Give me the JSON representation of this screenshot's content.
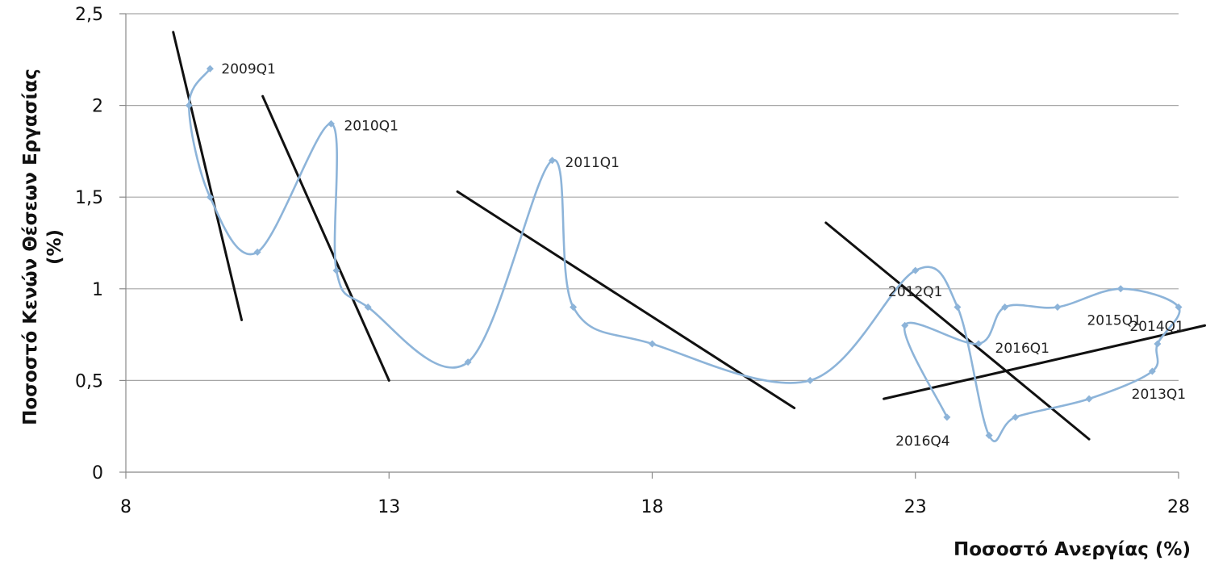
{
  "chart_data": {
    "type": "scatter",
    "xlabel": "Ποσοστό Ανεργίας (%)",
    "ylabel_lines": [
      "Ποσοστό Κενών Θέσεων Εργασίας",
      "(%)"
    ],
    "xlim": [
      8,
      28
    ],
    "ylim": [
      0,
      2.5
    ],
    "x_ticks": [
      8,
      13,
      18,
      23,
      28
    ],
    "x_tick_labels": [
      "8",
      "13",
      "18",
      "23",
      "28"
    ],
    "y_ticks": [
      0,
      0.5,
      1,
      1.5,
      2,
      2.5
    ],
    "y_tick_labels": [
      "0",
      "0,5",
      "1",
      "1,5",
      "2",
      "2,5"
    ],
    "grid": "horizontal",
    "legend": "none",
    "colors": {
      "series": "#8db4d9",
      "trend": "#111111",
      "grid": "#a6a6a6"
    },
    "series": [
      {
        "smooth": true,
        "points": [
          [
            9.6,
            2.2
          ],
          [
            9.2,
            2.0
          ],
          [
            9.6,
            1.5
          ],
          [
            10.5,
            1.2
          ],
          [
            11.9,
            1.9
          ],
          [
            12.0,
            1.1
          ],
          [
            12.6,
            0.9
          ],
          [
            14.5,
            0.6
          ],
          [
            16.1,
            1.7
          ],
          [
            16.5,
            0.9
          ],
          [
            18.0,
            0.7
          ],
          [
            21.0,
            0.5
          ],
          [
            23.0,
            1.1
          ],
          [
            23.8,
            0.9
          ],
          [
            24.4,
            0.2
          ],
          [
            24.9,
            0.3
          ],
          [
            26.3,
            0.4
          ],
          [
            27.5,
            0.55
          ],
          [
            27.6,
            0.7
          ],
          [
            28.0,
            0.9
          ],
          [
            26.9,
            1.0
          ],
          [
            25.7,
            0.9
          ],
          [
            24.7,
            0.9
          ],
          [
            24.2,
            0.7
          ],
          [
            22.8,
            0.8
          ],
          [
            23.6,
            0.3
          ]
        ]
      }
    ],
    "trend_lines": [
      {
        "x1": 8.9,
        "y1": 2.4,
        "x2": 10.2,
        "y2": 0.83
      },
      {
        "x1": 10.6,
        "y1": 2.05,
        "x2": 13.0,
        "y2": 0.5
      },
      {
        "x1": 14.3,
        "y1": 1.53,
        "x2": 20.7,
        "y2": 0.35
      },
      {
        "x1": 21.3,
        "y1": 1.36,
        "x2": 26.3,
        "y2": 0.18
      },
      {
        "x1": 22.4,
        "y1": 0.4,
        "x2": 28.5,
        "y2": 0.8
      }
    ],
    "annotations": [
      {
        "text": "2009Q1",
        "x": 9.6,
        "y": 2.2,
        "anchor": "start",
        "dx": 14,
        "dy": 6
      },
      {
        "text": "2010Q1",
        "x": 11.9,
        "y": 1.9,
        "anchor": "start",
        "dx": 16,
        "dy": 8
      },
      {
        "text": "2011Q1",
        "x": 16.1,
        "y": 1.7,
        "anchor": "start",
        "dx": 16,
        "dy": 8
      },
      {
        "text": "2012Q1",
        "x": 23.0,
        "y": 1.1,
        "anchor": "middle",
        "dx": 0,
        "dy": 32
      },
      {
        "text": "2013Q1",
        "x": 27.5,
        "y": 0.55,
        "anchor": "middle",
        "dx": 8,
        "dy": 34
      },
      {
        "text": "2014Q1",
        "x": 27.5,
        "y": 0.8,
        "anchor": "start",
        "dx": -28,
        "dy": 7
      },
      {
        "text": "2015Q1",
        "x": 26.9,
        "y": 0.9,
        "anchor": "middle",
        "dx": -8,
        "dy": 22
      },
      {
        "text": "2016Q1",
        "x": 25.0,
        "y": 0.8,
        "anchor": "middle",
        "dx": 2,
        "dy": 34
      },
      {
        "text": "2016Q4",
        "x": 23.6,
        "y": 0.3,
        "anchor": "middle",
        "dx": -30,
        "dy": 35
      }
    ]
  }
}
